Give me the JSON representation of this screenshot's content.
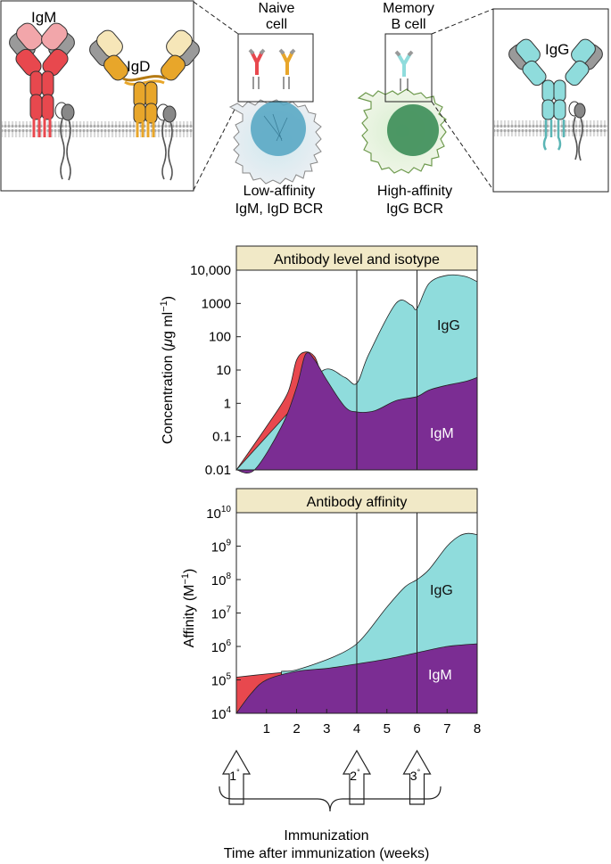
{
  "top": {
    "igm_label": "IgM",
    "igd_label": "IgD",
    "igg_label": "IgG",
    "naive_title_1": "Naive",
    "naive_title_2": "cell",
    "memory_title_1": "Memory",
    "memory_title_2": "B cell",
    "naive_caption_1": "Low-affinity",
    "naive_caption_2": "IgM, IgD BCR",
    "memory_caption_1": "High-affinity",
    "memory_caption_2": "IgG BCR"
  },
  "colors": {
    "igm_red": "#e8484e",
    "igd_yellow": "#e8a62a",
    "igg_cyan": "#8fdcdc",
    "igm_purple": "#7b2d93",
    "panel_header": "#f1e9c7",
    "naive_nucleus": "#5aa9c4",
    "memory_nucleus": "#3f8f5a"
  },
  "chart_data": [
    {
      "type": "area",
      "title": "Antibody level and isotype",
      "ylabel_main": "Concentration (",
      "ylabel_mu": "μ",
      "ylabel_g": "g ml",
      "ylabel_sup": "−1",
      "ylabel_close": ")",
      "yscale": "log",
      "ylim": [
        0.01,
        10000
      ],
      "xlim": [
        0,
        8
      ],
      "yticks": [
        "0.01",
        "0.1",
        "1",
        "10",
        "100",
        "1000",
        "10,000"
      ],
      "series": [
        {
          "name": "IgG",
          "label": "IgG",
          "x": [
            0,
            1,
            2,
            2.9,
            3.6,
            4,
            4.4,
            5.3,
            5.8,
            6,
            6.4,
            7,
            7.6,
            8
          ],
          "values": [
            0.01,
            0.1,
            1,
            10,
            6,
            4,
            30,
            1000,
            900,
            700,
            4000,
            7000,
            6500,
            4500
          ]
        },
        {
          "name": "IgM",
          "label": "IgM",
          "x": [
            0,
            0.6,
            1.5,
            2,
            2.3,
            2.6,
            3,
            3.6,
            4,
            4.6,
            5.3,
            6,
            6.4,
            7,
            7.6,
            8
          ],
          "values": [
            0.01,
            0.01,
            0.2,
            3,
            30,
            20,
            5,
            0.8,
            0.55,
            0.6,
            1.2,
            1.6,
            2.5,
            3.5,
            4.5,
            6
          ]
        },
        {
          "name": "IgM early peak",
          "label": "",
          "x": [
            0,
            1,
            1.7,
            2,
            2.3,
            2.6,
            2.8
          ],
          "values": [
            0.01,
            0.2,
            2,
            20,
            35,
            25,
            8
          ]
        }
      ],
      "vlines": [
        4,
        6
      ]
    },
    {
      "type": "area",
      "title": "Antibody affinity",
      "ylabel_main": "Affinity (M",
      "ylabel_sup": "−1",
      "ylabel_close": ")",
      "yscale": "log",
      "ylim": [
        10000,
        10000000000
      ],
      "xlim": [
        0,
        8
      ],
      "ytick_base": "10",
      "yticks_exp": [
        "4",
        "5",
        "6",
        "7",
        "8",
        "9",
        "10"
      ],
      "xticks": [
        "1",
        "2",
        "3",
        "4",
        "5",
        "6",
        "7",
        "8"
      ],
      "series": [
        {
          "name": "IgG",
          "label": "IgG",
          "x": [
            1.5,
            2,
            3,
            3.6,
            4,
            4.4,
            5,
            5.6,
            6,
            6.4,
            7,
            7.4,
            7.7,
            8
          ],
          "values": [
            180000,
            200000,
            400000,
            700000,
            1200000,
            3000000,
            15000000,
            60000000,
            100000000,
            200000000,
            1000000000,
            2000000000,
            2400000000,
            2200000000
          ]
        },
        {
          "name": "IgM",
          "label": "IgM",
          "x": [
            0,
            0.5,
            1,
            2,
            3,
            4,
            5,
            6,
            7,
            8
          ],
          "values": [
            10000,
            40000,
            100000,
            180000,
            220000,
            300000,
            420000,
            650000,
            1000000,
            1200000
          ]
        },
        {
          "name": "IgM early",
          "label": "",
          "x": [
            0,
            1,
            2,
            2.2
          ],
          "values": [
            120000,
            150000,
            180000,
            190000
          ]
        }
      ],
      "vlines": [
        4,
        6
      ]
    }
  ],
  "immunizations": [
    {
      "label": "1",
      "sup": "°",
      "week": 0
    },
    {
      "label": "2",
      "sup": "°",
      "week": 4
    },
    {
      "label": "3",
      "sup": "°",
      "week": 6
    }
  ],
  "footer": {
    "immunization_label": "Immunization",
    "xlabel": "Time after immunization (weeks)"
  }
}
